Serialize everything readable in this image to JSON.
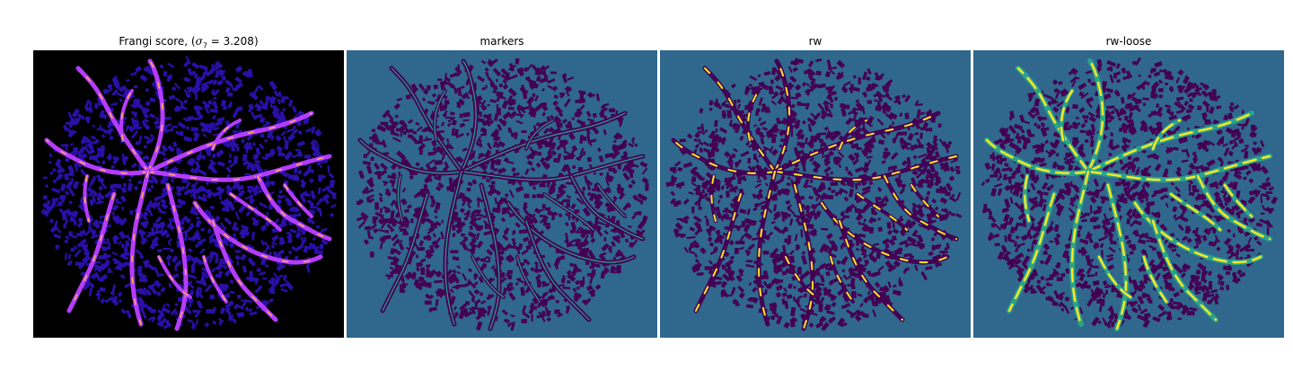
{
  "panels": [
    {
      "title": "Frangi score, (",
      "title_sym": "σ",
      "title_sub": "7",
      "title_tail": " = 3.208)"
    },
    {
      "title": "markers"
    },
    {
      "title": "rw"
    },
    {
      "title": "rw-loose"
    }
  ],
  "colors": {
    "frangi_background": "#000000",
    "frangi_texture": "#2a0fa8",
    "frangi_vessel": "#b53cff",
    "frangi_vessel_hot": "#ffb14e",
    "viridis_background": "#30678d",
    "viridis_dark": "#440154",
    "viridis_teal": "#29a38a",
    "viridis_yellow": "#fde725"
  }
}
